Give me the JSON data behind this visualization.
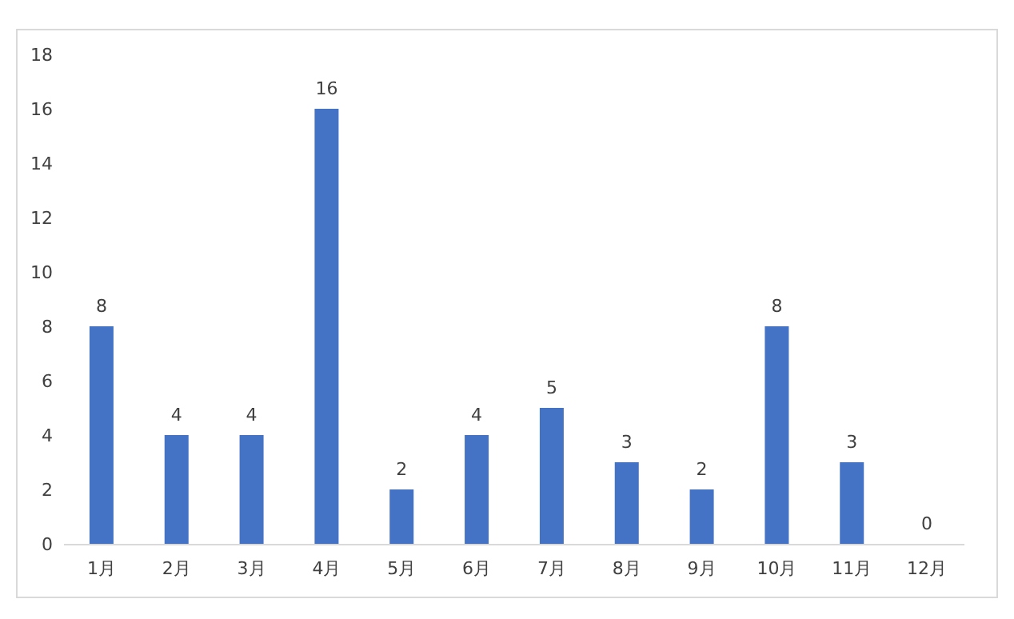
{
  "chart_data": {
    "type": "bar",
    "categories": [
      "1月",
      "2月",
      "3月",
      "4月",
      "5月",
      "6月",
      "7月",
      "8月",
      "9月",
      "10月",
      "11月",
      "12月"
    ],
    "values": [
      8,
      4,
      4,
      16,
      2,
      4,
      5,
      3,
      2,
      8,
      3,
      0
    ],
    "color": "#4472c4",
    "ylim": [
      0,
      18
    ],
    "yticks": [
      0,
      2,
      4,
      6,
      8,
      10,
      12,
      14,
      16,
      18
    ],
    "data_labels": true
  }
}
